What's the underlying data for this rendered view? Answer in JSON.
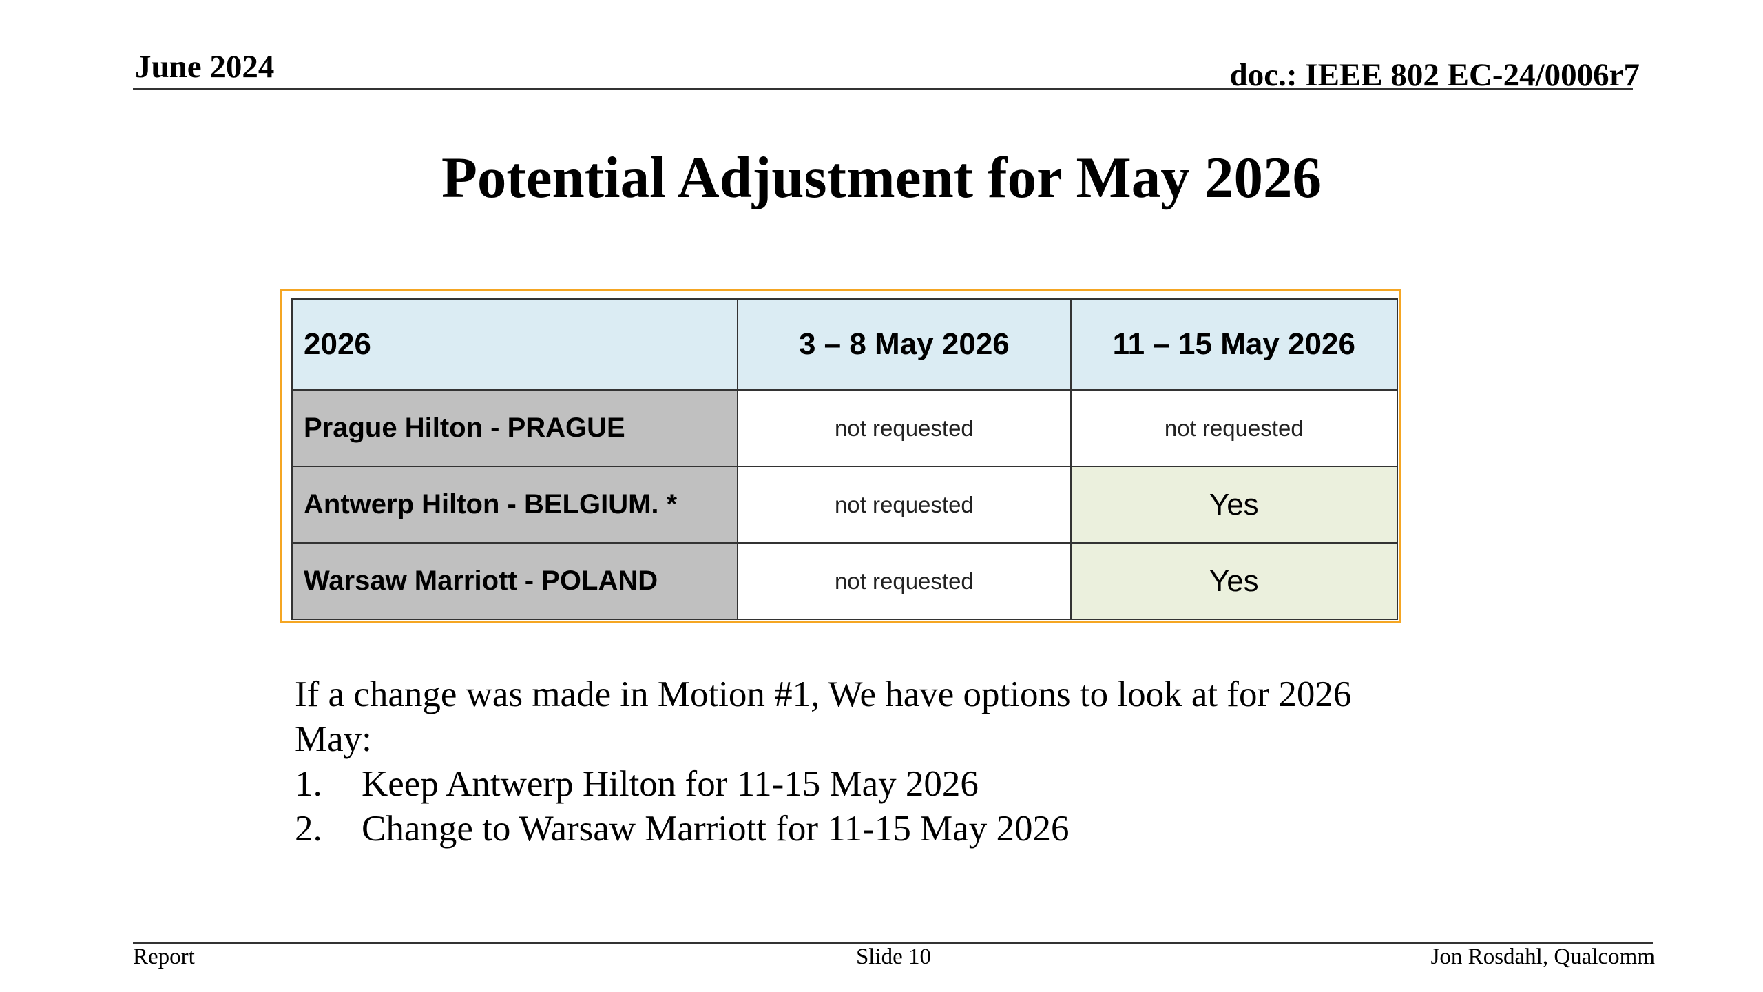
{
  "header": {
    "date": "June 2024",
    "doc_id": "doc.: IEEE 802 EC-24/0006r7"
  },
  "title": "Potential Adjustment for May 2026",
  "table": {
    "headers": [
      "2026",
      "3 – 8 May 2026",
      "11 – 15 May 2026"
    ],
    "rows": [
      {
        "venue": "Prague Hilton - PRAGUE",
        "col_a": "not requested",
        "col_b": "not requested"
      },
      {
        "venue": "Antwerp Hilton - BELGIUM. *",
        "col_a": "not requested",
        "col_b": "Yes"
      },
      {
        "venue": "Warsaw Marriott - POLAND",
        "col_a": "not requested",
        "col_b": "Yes"
      }
    ]
  },
  "body": {
    "intro": "If a change was made in Motion #1, We have options to look at for 2026 May:",
    "options": [
      {
        "number": "1.",
        "text": "Keep Antwerp Hilton for 11-15 May 2026"
      },
      {
        "number": "2.",
        "text": "Change to Warsaw Marriott for 11-15 May 2026"
      }
    ]
  },
  "footer": {
    "left": "Report",
    "center": "Slide 10",
    "right": "Jon Rosdahl, Qualcomm"
  },
  "colors": {
    "header_row_bg": "#dbecf3",
    "venue_cell_bg": "#c0c0c0",
    "yes_cell_bg": "#ebf0dd",
    "frame_border": "#f5a623"
  }
}
